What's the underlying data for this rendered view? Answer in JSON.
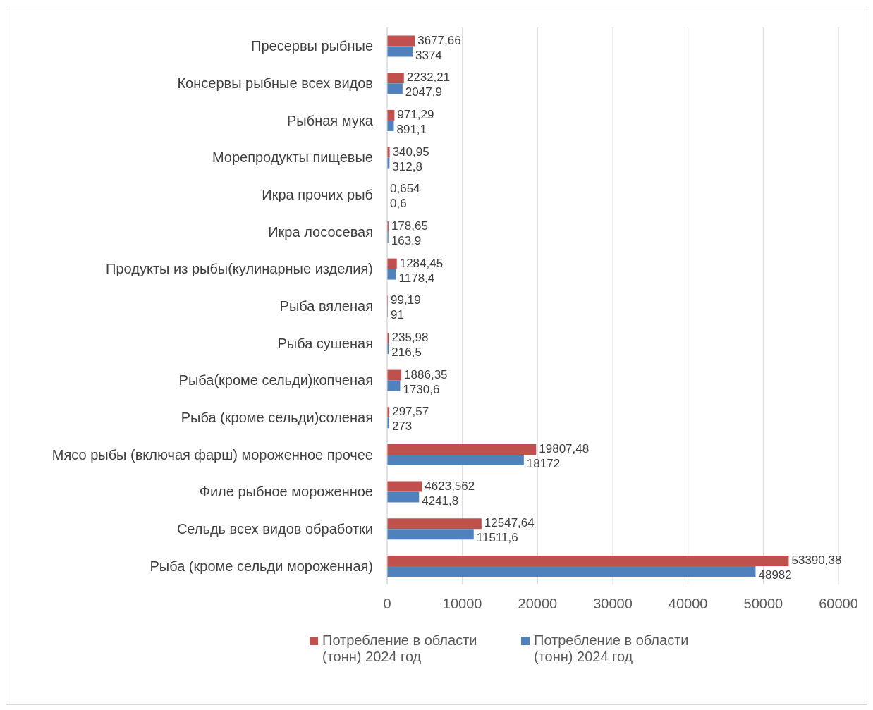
{
  "chart_data": {
    "type": "bar",
    "orientation": "horizontal",
    "categories": [
      "Пресервы рыбные",
      "Консервы рыбные всех видов",
      "Рыбная мука",
      "Морепродукты пищевые",
      "Икра прочих рыб",
      "Икра лососевая",
      "Продукты из рыбы(кулинарные изделия)",
      "Рыба вяленая",
      "Рыба сушеная",
      "Рыба(кроме сельди)копченая",
      "Рыба (кроме сельди)соленая",
      "Мясо рыбы (включая фарш) мороженное прочее",
      "Филе рыбное мороженное",
      "Сельдь всех видов обработки",
      "Рыба (кроме сельди мороженная)"
    ],
    "series": [
      {
        "name": "Потребление в области (тонн) 2024 год",
        "color": "#c0504d",
        "values": [
          3677.66,
          2232.21,
          971.29,
          340.95,
          0.654,
          178.65,
          1284.45,
          99.19,
          235.98,
          1886.35,
          297.57,
          19807.48,
          4623.562,
          12547.64,
          53390.38
        ],
        "value_labels": [
          "3677,66",
          "2232,21",
          "971,29",
          "340,95",
          "0,654",
          "178,65",
          "1284,45",
          "99,19",
          "235,98",
          "1886,35",
          "297,57",
          "19807,48",
          "4623,562",
          "12547,64",
          "53390,38"
        ]
      },
      {
        "name": "Потребление в области (тонн) 2024 год",
        "color": "#4f81bd",
        "values": [
          3374,
          2047.9,
          891.1,
          312.8,
          0.6,
          163.9,
          1178.4,
          91,
          216.5,
          1730.6,
          273,
          18172,
          4241.8,
          11511.6,
          48982
        ],
        "value_labels": [
          "3374",
          "2047,9",
          "891,1",
          "312,8",
          "0,6",
          "163,9",
          "1178,4",
          "91",
          "216,5",
          "1730,6",
          "273",
          "18172",
          "4241,8",
          "11511,6",
          "48982"
        ]
      }
    ],
    "xlim": [
      0,
      60000
    ],
    "xticks": [
      0,
      10000,
      20000,
      30000,
      40000,
      50000,
      60000
    ],
    "grid": "x",
    "legend": "bottom"
  }
}
